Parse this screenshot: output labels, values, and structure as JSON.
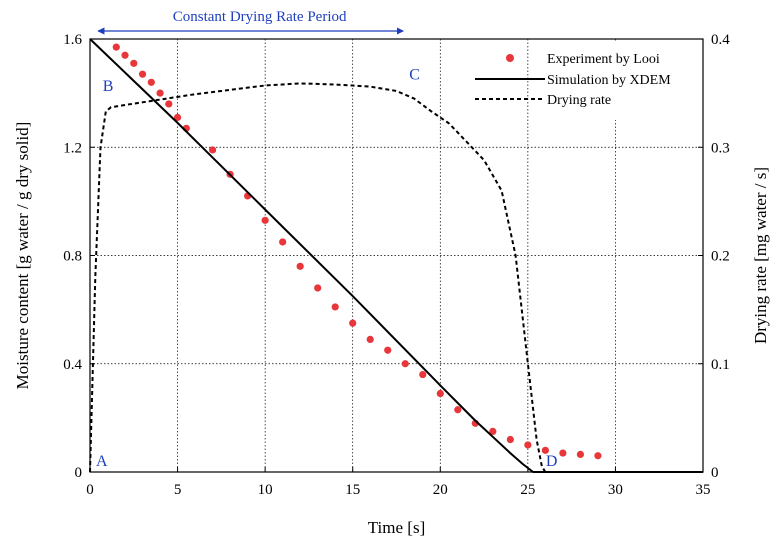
{
  "chart_data": {
    "type": "line",
    "xlabel": "Time [s]",
    "ylabel_left": "Moisture content [g water / g dry solid]",
    "ylabel_right": "Drying rate [mg water / s]",
    "xlim": [
      0,
      35
    ],
    "ylim_left": [
      0,
      1.6
    ],
    "ylim_right": [
      0,
      0.4
    ],
    "grid": true,
    "legend_position": "top-right",
    "x_ticks": [
      "0",
      "5",
      "10",
      "15",
      "20",
      "25",
      "30",
      "35"
    ],
    "y_left_ticks": [
      "0",
      "0.4",
      "0.8",
      "1.2",
      "1.6"
    ],
    "y_right_ticks": [
      "0",
      "0.1",
      "0.2",
      "0.3",
      "0.4"
    ],
    "series": [
      {
        "name": "Experiment by Looi",
        "kind": "scatter",
        "axis": "left",
        "color": "#e8363a",
        "x": [
          1.5,
          2.0,
          2.5,
          3.0,
          3.5,
          4.0,
          4.5,
          5.0,
          5.5,
          7.0,
          8.0,
          9.0,
          10.0,
          11.0,
          12.0,
          13.0,
          14.0,
          15.0,
          16.0,
          17.0,
          18.0,
          19.0,
          20.0,
          21.0,
          22.0,
          23.0,
          24.0,
          25.0,
          26.0,
          27.0,
          28.0,
          29.0
        ],
        "y": [
          1.57,
          1.54,
          1.51,
          1.47,
          1.44,
          1.4,
          1.36,
          1.31,
          1.27,
          1.19,
          1.1,
          1.02,
          0.93,
          0.85,
          0.76,
          0.68,
          0.61,
          0.55,
          0.49,
          0.45,
          0.4,
          0.36,
          0.29,
          0.23,
          0.18,
          0.15,
          0.12,
          0.1,
          0.08,
          0.07,
          0.065,
          0.06
        ]
      },
      {
        "name": "Simulation by XDEM",
        "kind": "line",
        "style": "solid",
        "axis": "left",
        "color": "#000000",
        "x": [
          0,
          5,
          10,
          15,
          20,
          22,
          23,
          24,
          24.7,
          25.3,
          26,
          35
        ],
        "y": [
          1.6,
          1.29,
          0.97,
          0.65,
          0.32,
          0.19,
          0.13,
          0.07,
          0.03,
          0.0,
          0.0,
          0.0
        ]
      },
      {
        "name": "Drying rate",
        "kind": "line",
        "style": "dashed",
        "axis": "right",
        "color": "#000000",
        "x": [
          0,
          0.3,
          0.6,
          0.9,
          1.2,
          2.0,
          4.0,
          6.0,
          8.0,
          10.0,
          12.0,
          14.0,
          16.0,
          17.5,
          18.5,
          19.5,
          20.5,
          21.5,
          22.5,
          23.5,
          24.3,
          25.0,
          25.5,
          25.8,
          26.0,
          35.0
        ],
        "y": [
          0,
          0.18,
          0.3,
          0.333,
          0.337,
          0.339,
          0.344,
          0.349,
          0.353,
          0.357,
          0.359,
          0.358,
          0.356,
          0.352,
          0.345,
          0.333,
          0.322,
          0.305,
          0.288,
          0.26,
          0.2,
          0.1,
          0.03,
          0.005,
          0.0,
          0.0
        ]
      }
    ],
    "annotations": {
      "span_label": "Constant Drying Rate Period",
      "span_x": [
        0,
        18
      ],
      "color": "#1f3fbf",
      "points": [
        {
          "label": "A",
          "x": 0,
          "y": 0
        },
        {
          "label": "B",
          "x": 0.5,
          "y": 1.37
        },
        {
          "label": "C",
          "x": 18,
          "y": 1.42
        },
        {
          "label": "D",
          "x": 25.8,
          "y": 0
        }
      ]
    }
  }
}
